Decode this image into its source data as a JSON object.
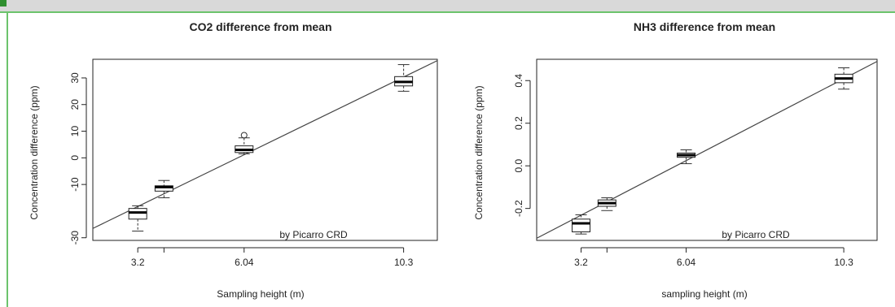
{
  "chart_data": [
    {
      "type": "box",
      "title": "CO2 difference from mean",
      "xlabel": "Sampling height (m)",
      "ylabel": "Concentration difference (ppm)",
      "annotation": "by Picarro CRD",
      "x_ticks": [
        "3.2",
        "6.04",
        "10.3"
      ],
      "x_tick_values": [
        3.2,
        6.04,
        10.3
      ],
      "xlim": [
        2.0,
        11.2
      ],
      "y_ticks": [
        "-30",
        "-10",
        "0",
        "10",
        "20",
        "30"
      ],
      "y_tick_values": [
        -30,
        -10,
        0,
        10,
        20,
        30
      ],
      "ylim": [
        -31,
        37
      ],
      "fit_line": {
        "x0": 2.0,
        "y0": -26.5,
        "x1": 11.2,
        "y1": 36.5
      },
      "boxes": [
        {
          "x": 3.2,
          "min": -27.5,
          "q1": -23,
          "median": -20.5,
          "q3": -19,
          "max": -18
        },
        {
          "x": 3.9,
          "min": -15,
          "q1": -12.5,
          "median": -11,
          "q3": -10.5,
          "max": -8.5
        },
        {
          "x": 6.04,
          "min": 1.5,
          "q1": 2,
          "median": 3,
          "q3": 4.5,
          "max": 7.5,
          "outliers": [
            8.5
          ]
        },
        {
          "x": 10.3,
          "min": 25,
          "q1": 27,
          "median": 28.5,
          "q3": 30.5,
          "max": 35
        }
      ]
    },
    {
      "type": "box",
      "title": "NH3 difference from mean",
      "xlabel": "sampling height (m)",
      "ylabel": "Concentration difference (ppm)",
      "annotation": "by Picarro CRD",
      "x_ticks": [
        "3.2",
        "6.04",
        "10.3"
      ],
      "x_tick_values": [
        3.2,
        6.04,
        10.3
      ],
      "xlim": [
        2.0,
        11.2
      ],
      "y_ticks": [
        "-0.2",
        "0.0",
        "0.2",
        "0.4"
      ],
      "y_tick_values": [
        -0.2,
        0.0,
        0.2,
        0.4
      ],
      "ylim": [
        -0.35,
        0.5
      ],
      "fit_line": {
        "x0": 2.0,
        "y0": -0.34,
        "x1": 11.2,
        "y1": 0.49
      },
      "boxes": [
        {
          "x": 3.2,
          "min": -0.32,
          "q1": -0.31,
          "median": -0.27,
          "q3": -0.25,
          "max": -0.23
        },
        {
          "x": 3.9,
          "min": -0.21,
          "q1": -0.19,
          "median": -0.175,
          "q3": -0.16,
          "max": -0.15
        },
        {
          "x": 6.04,
          "min": 0.01,
          "q1": 0.04,
          "median": 0.05,
          "q3": 0.06,
          "max": 0.075
        },
        {
          "x": 10.3,
          "min": 0.36,
          "q1": 0.39,
          "median": 0.41,
          "q3": 0.43,
          "max": 0.46
        }
      ]
    }
  ]
}
